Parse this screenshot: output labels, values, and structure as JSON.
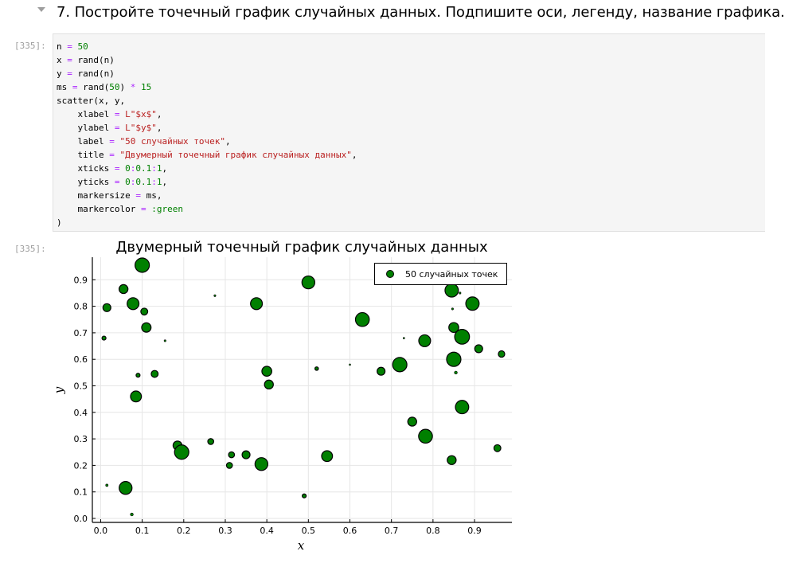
{
  "heading": "7. Постройте точечный график случайных данных. Подпишите оси, легенду, название графика.",
  "input_prompt": "[335]:",
  "output_prompt": "[335]:",
  "code_lines": [
    [
      {
        "t": "n "
      },
      {
        "t": "=",
        "c": "op"
      },
      {
        "t": " "
      },
      {
        "t": "50",
        "c": "num"
      }
    ],
    [
      {
        "t": "x "
      },
      {
        "t": "=",
        "c": "op"
      },
      {
        "t": " rand(n)"
      }
    ],
    [
      {
        "t": "y "
      },
      {
        "t": "=",
        "c": "op"
      },
      {
        "t": " rand(n)"
      }
    ],
    [
      {
        "t": "ms "
      },
      {
        "t": "=",
        "c": "op"
      },
      {
        "t": " rand("
      },
      {
        "t": "50",
        "c": "num"
      },
      {
        "t": ") "
      },
      {
        "t": "*",
        "c": "op"
      },
      {
        "t": " "
      },
      {
        "t": "15",
        "c": "num"
      }
    ],
    [
      {
        "t": "scatter(x, y,"
      }
    ],
    [
      {
        "t": "    xlabel "
      },
      {
        "t": "=",
        "c": "op"
      },
      {
        "t": " "
      },
      {
        "t": "L\"$x$\"",
        "c": "str"
      },
      {
        "t": ","
      }
    ],
    [
      {
        "t": "    ylabel "
      },
      {
        "t": "=",
        "c": "op"
      },
      {
        "t": " "
      },
      {
        "t": "L\"$y$\"",
        "c": "str"
      },
      {
        "t": ","
      }
    ],
    [
      {
        "t": "    label "
      },
      {
        "t": "=",
        "c": "op"
      },
      {
        "t": " "
      },
      {
        "t": "\"50 случайных точек\"",
        "c": "str"
      },
      {
        "t": ","
      }
    ],
    [
      {
        "t": "    title "
      },
      {
        "t": "=",
        "c": "op"
      },
      {
        "t": " "
      },
      {
        "t": "\"Двумерный точечный график случайных данных\"",
        "c": "str"
      },
      {
        "t": ","
      }
    ],
    [
      {
        "t": "    xticks "
      },
      {
        "t": "=",
        "c": "op"
      },
      {
        "t": " "
      },
      {
        "t": "0",
        "c": "num"
      },
      {
        "t": ":",
        "c": "op"
      },
      {
        "t": "0.1",
        "c": "num"
      },
      {
        "t": ":",
        "c": "op"
      },
      {
        "t": "1",
        "c": "num"
      },
      {
        "t": ","
      }
    ],
    [
      {
        "t": "    yticks "
      },
      {
        "t": "=",
        "c": "op"
      },
      {
        "t": " "
      },
      {
        "t": "0",
        "c": "num"
      },
      {
        "t": ":",
        "c": "op"
      },
      {
        "t": "0.1",
        "c": "num"
      },
      {
        "t": ":",
        "c": "op"
      },
      {
        "t": "1",
        "c": "num"
      },
      {
        "t": ","
      }
    ],
    [
      {
        "t": "    markersize "
      },
      {
        "t": "=",
        "c": "op"
      },
      {
        "t": " ms,"
      }
    ],
    [
      {
        "t": "    markercolor "
      },
      {
        "t": "=",
        "c": "op"
      },
      {
        "t": " "
      },
      {
        "t": ":green",
        "c": "sym"
      }
    ],
    [
      {
        "t": ")"
      }
    ]
  ],
  "colors": {
    "operator": "#aa22ff",
    "number": "#008000",
    "string": "#ba2121",
    "symbol": "#008000",
    "marker_fill": "#008000",
    "marker_edge": "#000000"
  },
  "chart_data": {
    "type": "scatter",
    "title": "Двумерный точечный график случайных данных",
    "xlabel": "x",
    "ylabel": "y",
    "xlim": [
      -0.02,
      0.99
    ],
    "ylim": [
      -0.015,
      0.985
    ],
    "xticks": [
      "0.0",
      "0.1",
      "0.2",
      "0.3",
      "0.4",
      "0.5",
      "0.6",
      "0.7",
      "0.8",
      "0.9"
    ],
    "yticks": [
      "0.0",
      "0.1",
      "0.2",
      "0.3",
      "0.4",
      "0.5",
      "0.6",
      "0.7",
      "0.8",
      "0.9"
    ],
    "grid": true,
    "legend_position": "top-right",
    "series": [
      {
        "name": "50 случайных точек",
        "points": [
          {
            "x": 0.1,
            "y": 0.955,
            "size": 14.5
          },
          {
            "x": 0.055,
            "y": 0.865,
            "size": 9
          },
          {
            "x": 0.015,
            "y": 0.795,
            "size": 8
          },
          {
            "x": 0.078,
            "y": 0.81,
            "size": 12
          },
          {
            "x": 0.105,
            "y": 0.78,
            "size": 7
          },
          {
            "x": 0.11,
            "y": 0.72,
            "size": 9.5
          },
          {
            "x": 0.008,
            "y": 0.68,
            "size": 4
          },
          {
            "x": 0.155,
            "y": 0.67,
            "size": 2
          },
          {
            "x": 0.09,
            "y": 0.54,
            "size": 4
          },
          {
            "x": 0.13,
            "y": 0.545,
            "size": 7
          },
          {
            "x": 0.085,
            "y": 0.46,
            "size": 11
          },
          {
            "x": 0.275,
            "y": 0.84,
            "size": 2
          },
          {
            "x": 0.375,
            "y": 0.81,
            "size": 12
          },
          {
            "x": 0.5,
            "y": 0.89,
            "size": 13
          },
          {
            "x": 0.63,
            "y": 0.75,
            "size": 14
          },
          {
            "x": 0.4,
            "y": 0.555,
            "size": 10
          },
          {
            "x": 0.405,
            "y": 0.505,
            "size": 9
          },
          {
            "x": 0.52,
            "y": 0.565,
            "size": 3.5
          },
          {
            "x": 0.6,
            "y": 0.58,
            "size": 1.5
          },
          {
            "x": 0.675,
            "y": 0.555,
            "size": 8
          },
          {
            "x": 0.72,
            "y": 0.58,
            "size": 14.5
          },
          {
            "x": 0.78,
            "y": 0.67,
            "size": 12
          },
          {
            "x": 0.845,
            "y": 0.86,
            "size": 13.5
          },
          {
            "x": 0.865,
            "y": 0.85,
            "size": 2
          },
          {
            "x": 0.847,
            "y": 0.79,
            "size": 2
          },
          {
            "x": 0.895,
            "y": 0.81,
            "size": 13.5
          },
          {
            "x": 0.85,
            "y": 0.72,
            "size": 10
          },
          {
            "x": 0.87,
            "y": 0.685,
            "size": 15
          },
          {
            "x": 0.91,
            "y": 0.64,
            "size": 8
          },
          {
            "x": 0.965,
            "y": 0.62,
            "size": 6.5
          },
          {
            "x": 0.85,
            "y": 0.6,
            "size": 14.5
          },
          {
            "x": 0.855,
            "y": 0.55,
            "size": 3
          },
          {
            "x": 0.75,
            "y": 0.365,
            "size": 9
          },
          {
            "x": 0.87,
            "y": 0.42,
            "size": 13.5
          },
          {
            "x": 0.782,
            "y": 0.31,
            "size": 14
          },
          {
            "x": 0.845,
            "y": 0.22,
            "size": 9
          },
          {
            "x": 0.955,
            "y": 0.265,
            "size": 7
          },
          {
            "x": 0.185,
            "y": 0.275,
            "size": 9
          },
          {
            "x": 0.195,
            "y": 0.25,
            "size": 14.5
          },
          {
            "x": 0.265,
            "y": 0.29,
            "size": 6
          },
          {
            "x": 0.315,
            "y": 0.24,
            "size": 6
          },
          {
            "x": 0.35,
            "y": 0.24,
            "size": 8
          },
          {
            "x": 0.31,
            "y": 0.2,
            "size": 6
          },
          {
            "x": 0.387,
            "y": 0.205,
            "size": 13
          },
          {
            "x": 0.545,
            "y": 0.235,
            "size": 11
          },
          {
            "x": 0.015,
            "y": 0.125,
            "size": 2.5
          },
          {
            "x": 0.06,
            "y": 0.115,
            "size": 13
          },
          {
            "x": 0.49,
            "y": 0.085,
            "size": 4
          },
          {
            "x": 0.075,
            "y": 0.015,
            "size": 3
          },
          {
            "x": 0.73,
            "y": 0.68,
            "size": 1
          }
        ]
      }
    ]
  }
}
